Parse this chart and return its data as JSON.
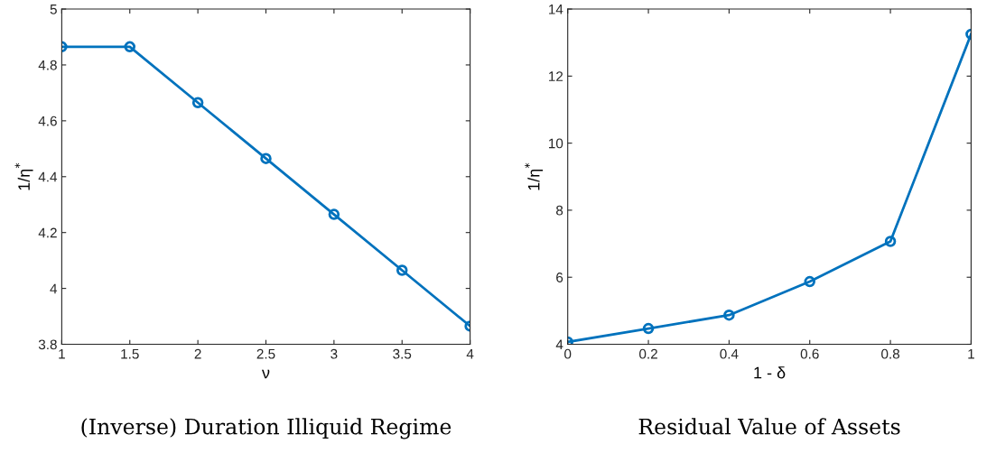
{
  "chart_data": [
    {
      "type": "line",
      "title": "(Inverse) Duration Illiquid Regime",
      "xlabel": "ν",
      "ylabel": "1/η$^{*}$",
      "x": [
        1,
        1.5,
        2,
        2.5,
        3,
        3.5,
        4
      ],
      "series": [
        {
          "color": "#0072bd",
          "values": [
            4.865,
            4.865,
            4.665,
            4.465,
            4.265,
            4.065,
            3.865
          ]
        }
      ],
      "xlim": [
        1,
        4
      ],
      "xticks": [
        1,
        1.5,
        2,
        2.5,
        3,
        3.5,
        4
      ],
      "ylim": [
        3.8,
        5
      ],
      "yticks": [
        3.8,
        4,
        4.2,
        4.4,
        4.6,
        4.8,
        5
      ],
      "marker": "circle",
      "grid": false,
      "legend": false
    },
    {
      "type": "line",
      "title": "Residual Value of Assets",
      "xlabel": "1 - δ",
      "ylabel": "1/η$^{*}$",
      "x": [
        0,
        0.2,
        0.4,
        0.6,
        0.8,
        1
      ],
      "series": [
        {
          "color": "#0072bd",
          "values": [
            4.07,
            4.47,
            4.87,
            5.87,
            7.07,
            13.25
          ]
        }
      ],
      "xlim": [
        0,
        1
      ],
      "xticks": [
        0,
        0.2,
        0.4,
        0.6,
        0.8,
        1
      ],
      "ylim": [
        4,
        14
      ],
      "yticks": [
        4,
        6,
        8,
        10,
        12,
        14
      ],
      "marker": "circle",
      "grid": false,
      "legend": false
    }
  ]
}
